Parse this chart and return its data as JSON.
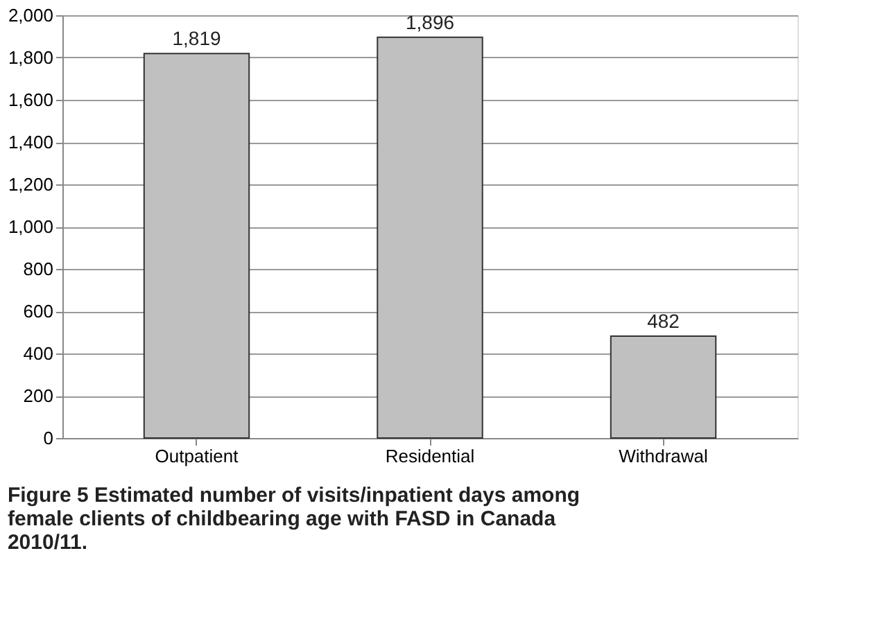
{
  "chart_data": {
    "type": "bar",
    "categories": [
      "Outpatient",
      "Residential",
      "Withdrawal"
    ],
    "values": [
      1819,
      1896,
      482
    ],
    "color": "#c0c0c0",
    "value_labels": [
      "1,819",
      "1,896",
      "482"
    ],
    "ylim": [
      0,
      2000
    ],
    "yticks": [
      0,
      200,
      400,
      600,
      800,
      {
        "value": 1000,
        "label": "1,000"
      },
      {
        "value": 1200,
        "label": "1,200"
      },
      {
        "value": 1400,
        "label": "1,400"
      },
      {
        "value": 1600,
        "label": "1,600"
      },
      {
        "value": 1800,
        "label": "1,800"
      },
      {
        "value": 2000,
        "label": "2,000"
      }
    ],
    "grid": "y",
    "annotations": [
      "Figure 5 Estimated number of visits/inpatient days among female clients of childbearing age with FASD in Canada 2010/11."
    ]
  }
}
